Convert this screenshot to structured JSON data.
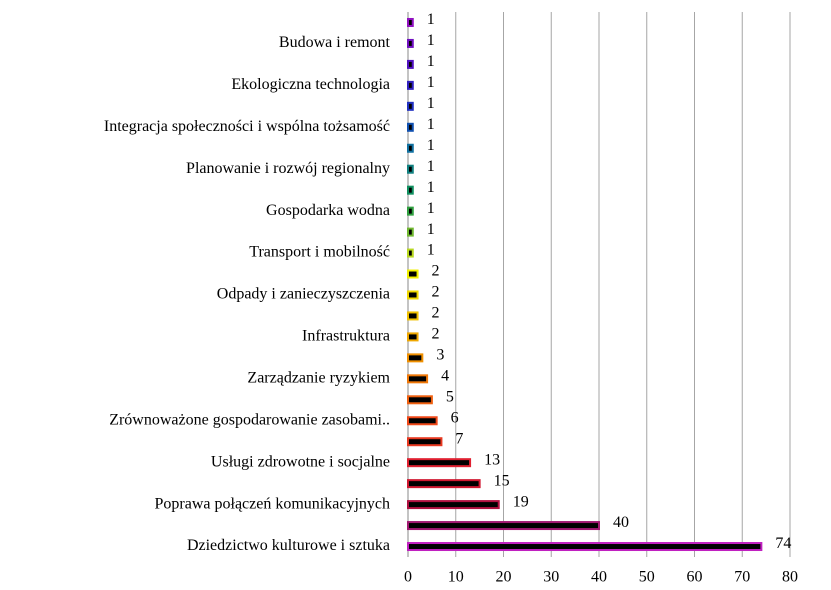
{
  "chart_data": {
    "type": "hbar",
    "categories": [
      "Dziedzictwo kulturowe i sztuka",
      null,
      "Poprawa połączeń komunikacyjnych",
      null,
      "Usługi zdrowotne i socjalne",
      null,
      "Zrównoważone gospodarowanie zasobami..",
      null,
      "Zarządzanie ryzykiem",
      null,
      "Infrastruktura",
      null,
      "Odpady i zanieczyszczenia",
      null,
      "Transport i mobilność",
      null,
      "Gospodarka wodna",
      null,
      "Planowanie i rozwój regionalny",
      null,
      "Integracja społeczności i wspólna tożsamość",
      null,
      "Ekologiczna technologia",
      null,
      "Budowa i remont",
      null
    ],
    "values": [
      74,
      40,
      19,
      15,
      13,
      7,
      6,
      5,
      4,
      3,
      2,
      2,
      2,
      2,
      1,
      1,
      1,
      1,
      1,
      1,
      1,
      1,
      1,
      1,
      1,
      1
    ],
    "bar_fill": "#000000",
    "colors": [
      "#c020c0",
      "#a01870",
      "#b01040",
      "#d01830",
      "#e02030",
      "#e83820",
      "#f04818",
      "#f06010",
      "#f07808",
      "#f09000",
      "#f0a800",
      "#f0c000",
      "#f0d800",
      "#f0f000",
      "#b8d820",
      "#70b830",
      "#30a040",
      "#109060",
      "#108080",
      "#1070a0",
      "#1050b0",
      "#2030c0",
      "#3020c0",
      "#5010c0",
      "#7010c0",
      "#9010c0"
    ],
    "xlim": [
      0,
      80
    ],
    "xticks": [
      0,
      10,
      20,
      30,
      40,
      50,
      60,
      70,
      80
    ],
    "grid": true
  }
}
